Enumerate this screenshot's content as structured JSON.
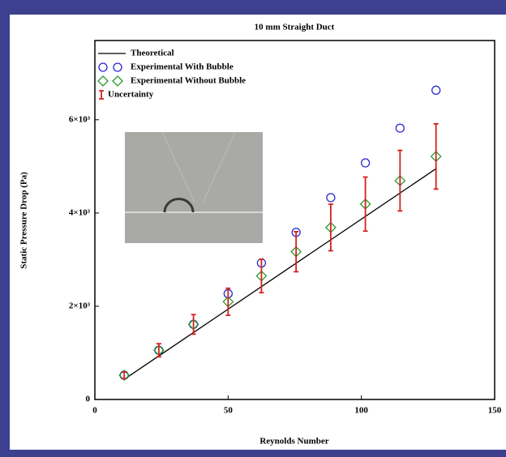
{
  "chart_data": {
    "type": "scatter",
    "title": "10 mm Straight Duct",
    "x_label": "Reynolds Number",
    "y_label": "Static Pressure Drop (Pa)",
    "xlim": [
      0,
      150
    ],
    "xticks": [
      0,
      50,
      100,
      150
    ],
    "ylim": [
      0,
      7700
    ],
    "yticks": [
      0,
      {
        "value": 2000,
        "label": "2×10³"
      },
      {
        "value": 4000,
        "label": "4×10³"
      },
      {
        "value": 6000,
        "label": "6×10³"
      }
    ],
    "legend": "top-left",
    "series": [
      {
        "name": "Theoretical",
        "color": "#000000",
        "mode": "line",
        "x": [
          12,
          128
        ],
        "values": [
          470,
          4950
        ]
      },
      {
        "name": "Experimental With Bubble",
        "color": "#2a2acc",
        "mode": "circle",
        "x": [
          11,
          24,
          37,
          50,
          62.5,
          75.5,
          88.5,
          101.5,
          114.5,
          128
        ],
        "values": [
          520,
          1056,
          1611,
          2269,
          2927,
          3585,
          4330,
          5075,
          5820,
          6634
        ]
      },
      {
        "name": "Experimental Without Bubble",
        "color": "#2a9a2a",
        "mode": "diamond",
        "x": [
          11,
          24,
          37,
          50,
          62.5,
          75.5,
          88.5,
          101.5,
          114.5,
          128
        ],
        "values": [
          520,
          1056,
          1611,
          2096,
          2650,
          3170,
          3689,
          4191,
          4694,
          5213
        ]
      },
      {
        "name": "Uncertainty",
        "color": "#d42020",
        "mode": "error",
        "errors": [
          70,
          140,
          210,
          290,
          360,
          430,
          500,
          580,
          650,
          700
        ]
      }
    ]
  }
}
